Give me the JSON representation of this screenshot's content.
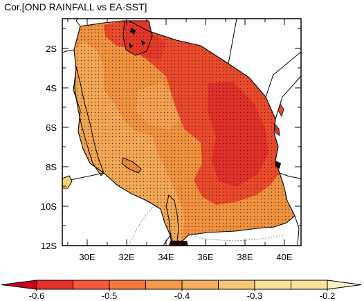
{
  "title": "Cor.[OND RAINFALL vs EA-SST]",
  "map": {
    "lon_range": [
      29,
      41
    ],
    "lat_range": [
      -12,
      -1
    ],
    "y_ticks": [
      "2S",
      "4S",
      "6S",
      "8S",
      "10S",
      "12S"
    ],
    "x_ticks": [
      "30E",
      "32E",
      "34E",
      "36E",
      "38E",
      "40E"
    ],
    "stippling": "significant correlation",
    "colors": {
      "land_base": "#f08a3c",
      "strong": "#e8302a",
      "moderate": "#f06a30",
      "weak": "#f5b05a",
      "lake": "#e03020"
    }
  },
  "colorbar": {
    "labels": [
      "-0.6",
      "-0.5",
      "-0.4",
      "-0.3",
      "-0.2"
    ],
    "colors": [
      "#c8001e",
      "#e8302a",
      "#f5583a",
      "#f57a3a",
      "#f59a48",
      "#f5ae5c",
      "#f8c878",
      "#fbe098",
      "#fdf0c0"
    ]
  }
}
